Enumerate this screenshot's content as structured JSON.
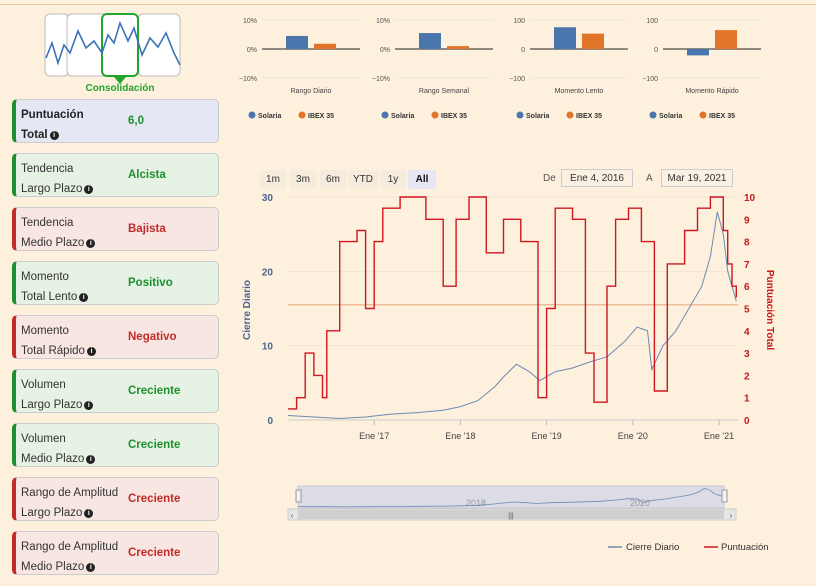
{
  "logo": {
    "label": "Consolidación"
  },
  "cards": [
    {
      "type": "b",
      "l1": "Puntuación",
      "l2": "Total",
      "value": "6,0"
    },
    {
      "type": "g",
      "l1": "Tendencia",
      "l2": "Largo Plazo",
      "value": "Alcista"
    },
    {
      "type": "r",
      "l1": "Tendencia",
      "l2": "Medio Plazo",
      "value": "Bajista"
    },
    {
      "type": "g",
      "l1": "Momento",
      "l2": "Total Lento",
      "value": "Positivo"
    },
    {
      "type": "r",
      "l1": "Momento",
      "l2": "Total Rápido",
      "value": "Negativo"
    },
    {
      "type": "g",
      "l1": "Volumen",
      "l2": "Largo Plazo",
      "value": "Creciente"
    },
    {
      "type": "g",
      "l1": "Volumen",
      "l2": "Medio Plazo",
      "value": "Creciente"
    },
    {
      "type": "r",
      "l1": "Rango de Amplitud",
      "l2": "Largo Plazo",
      "value": "Creciente"
    },
    {
      "type": "r",
      "l1": "Rango de Amplitud",
      "l2": "Medio Plazo",
      "value": "Creciente"
    }
  ],
  "range": {
    "buttons": [
      "1m",
      "3m",
      "6m",
      "YTD",
      "1y",
      "All"
    ],
    "active": "All",
    "from_label": "De",
    "from": "Ene 4, 2016",
    "to_label": "A",
    "to": "Mar 19, 2021"
  },
  "colors": {
    "solaria": "#4a76ad",
    "ibex": "#e2742a",
    "close": "#6d8ab5",
    "score": "#d0161f"
  },
  "chart_data": [
    {
      "type": "bar",
      "title": "Rango Diario",
      "categories": [
        "Solaria",
        "IBEX 35"
      ],
      "values": [
        4.5,
        1.8
      ],
      "ylim": [
        -10,
        10
      ],
      "yticks": [
        "10%",
        "0%",
        "−10%"
      ]
    },
    {
      "type": "bar",
      "title": "Rango Semanal",
      "categories": [
        "Solaria",
        "IBEX 35"
      ],
      "values": [
        5.5,
        1
      ],
      "ylim": [
        -10,
        10
      ],
      "yticks": [
        "10%",
        "0%",
        "−10%"
      ]
    },
    {
      "type": "bar",
      "title": "Momento Lento",
      "categories": [
        "Solaria",
        "IBEX 35"
      ],
      "values": [
        75,
        53
      ],
      "ylim": [
        -100,
        100
      ],
      "yticks": [
        "100",
        "0",
        "−100"
      ]
    },
    {
      "type": "bar",
      "title": "Momento Rápido",
      "categories": [
        "Solaria",
        "IBEX 35"
      ],
      "values": [
        -22,
        65
      ],
      "ylim": [
        -100,
        100
      ],
      "yticks": [
        "100",
        "0",
        "−100"
      ]
    },
    {
      "type": "line",
      "ylabel": "Cierre Diario",
      "y2label": "Puntuación Total",
      "ylim": [
        0,
        30
      ],
      "y2lim": [
        0,
        10
      ],
      "yticks": [
        0,
        10,
        20,
        30
      ],
      "y2ticks": [
        0,
        1,
        2,
        3,
        4,
        5,
        6,
        7,
        8,
        9,
        10
      ],
      "xrange": [
        2016.0,
        2021.22
      ],
      "xticks": [
        {
          "x": 2017,
          "label": "Ene '17"
        },
        {
          "x": 2018,
          "label": "Ene '18"
        },
        {
          "x": 2019,
          "label": "Ene '19"
        },
        {
          "x": 2020,
          "label": "Ene '20"
        },
        {
          "x": 2021,
          "label": "Ene '21"
        }
      ],
      "threshold_y": 15.5,
      "legend": [
        "Cierre Diario",
        "Puntuación"
      ],
      "series": [
        {
          "name": "Cierre Diario",
          "axis": "left",
          "points": [
            [
              2016.0,
              0.6
            ],
            [
              2016.3,
              0.4
            ],
            [
              2016.6,
              0.2
            ],
            [
              2016.9,
              0.4
            ],
            [
              2017.2,
              0.8
            ],
            [
              2017.5,
              1.0
            ],
            [
              2017.8,
              1.3
            ],
            [
              2018.0,
              1.8
            ],
            [
              2018.2,
              2.6
            ],
            [
              2018.4,
              4.5
            ],
            [
              2018.5,
              5.8
            ],
            [
              2018.65,
              7.5
            ],
            [
              2018.8,
              6.5
            ],
            [
              2018.92,
              5.3
            ],
            [
              2019.1,
              6.5
            ],
            [
              2019.3,
              7.0
            ],
            [
              2019.5,
              7.8
            ],
            [
              2019.7,
              8.5
            ],
            [
              2019.9,
              10.5
            ],
            [
              2020.05,
              12.5
            ],
            [
              2020.17,
              12.0
            ],
            [
              2020.22,
              6.8
            ],
            [
              2020.35,
              10.0
            ],
            [
              2020.5,
              12.0
            ],
            [
              2020.65,
              15.0
            ],
            [
              2020.8,
              18.0
            ],
            [
              2020.9,
              22.0
            ],
            [
              2020.98,
              28.0
            ],
            [
              2021.05,
              25.0
            ],
            [
              2021.1,
              20.0
            ],
            [
              2021.15,
              18.0
            ],
            [
              2021.2,
              16.0
            ]
          ]
        },
        {
          "name": "Puntuación",
          "axis": "right",
          "points": [
            [
              2016.0,
              0.5
            ],
            [
              2016.1,
              1
            ],
            [
              2016.2,
              3
            ],
            [
              2016.3,
              2
            ],
            [
              2016.4,
              1
            ],
            [
              2016.45,
              4
            ],
            [
              2016.6,
              8
            ],
            [
              2016.8,
              8.5
            ],
            [
              2016.9,
              5
            ],
            [
              2017.0,
              8
            ],
            [
              2017.1,
              9.5
            ],
            [
              2017.3,
              10
            ],
            [
              2017.6,
              9
            ],
            [
              2017.8,
              6
            ],
            [
              2017.95,
              9
            ],
            [
              2018.1,
              10
            ],
            [
              2018.3,
              7.5
            ],
            [
              2018.5,
              9
            ],
            [
              2018.7,
              8
            ],
            [
              2018.9,
              1
            ],
            [
              2019.0,
              5
            ],
            [
              2019.1,
              9.5
            ],
            [
              2019.3,
              9
            ],
            [
              2019.45,
              3
            ],
            [
              2019.55,
              0.8
            ],
            [
              2019.7,
              6
            ],
            [
              2019.8,
              9
            ],
            [
              2019.95,
              9.5
            ],
            [
              2020.1,
              8
            ],
            [
              2020.25,
              1.3
            ],
            [
              2020.4,
              7
            ],
            [
              2020.6,
              8.5
            ],
            [
              2020.75,
              9.5
            ],
            [
              2020.9,
              10
            ],
            [
              2021.0,
              10
            ],
            [
              2021.05,
              8.5
            ],
            [
              2021.1,
              7
            ],
            [
              2021.15,
              6
            ],
            [
              2021.2,
              5.5
            ]
          ]
        }
      ]
    }
  ]
}
